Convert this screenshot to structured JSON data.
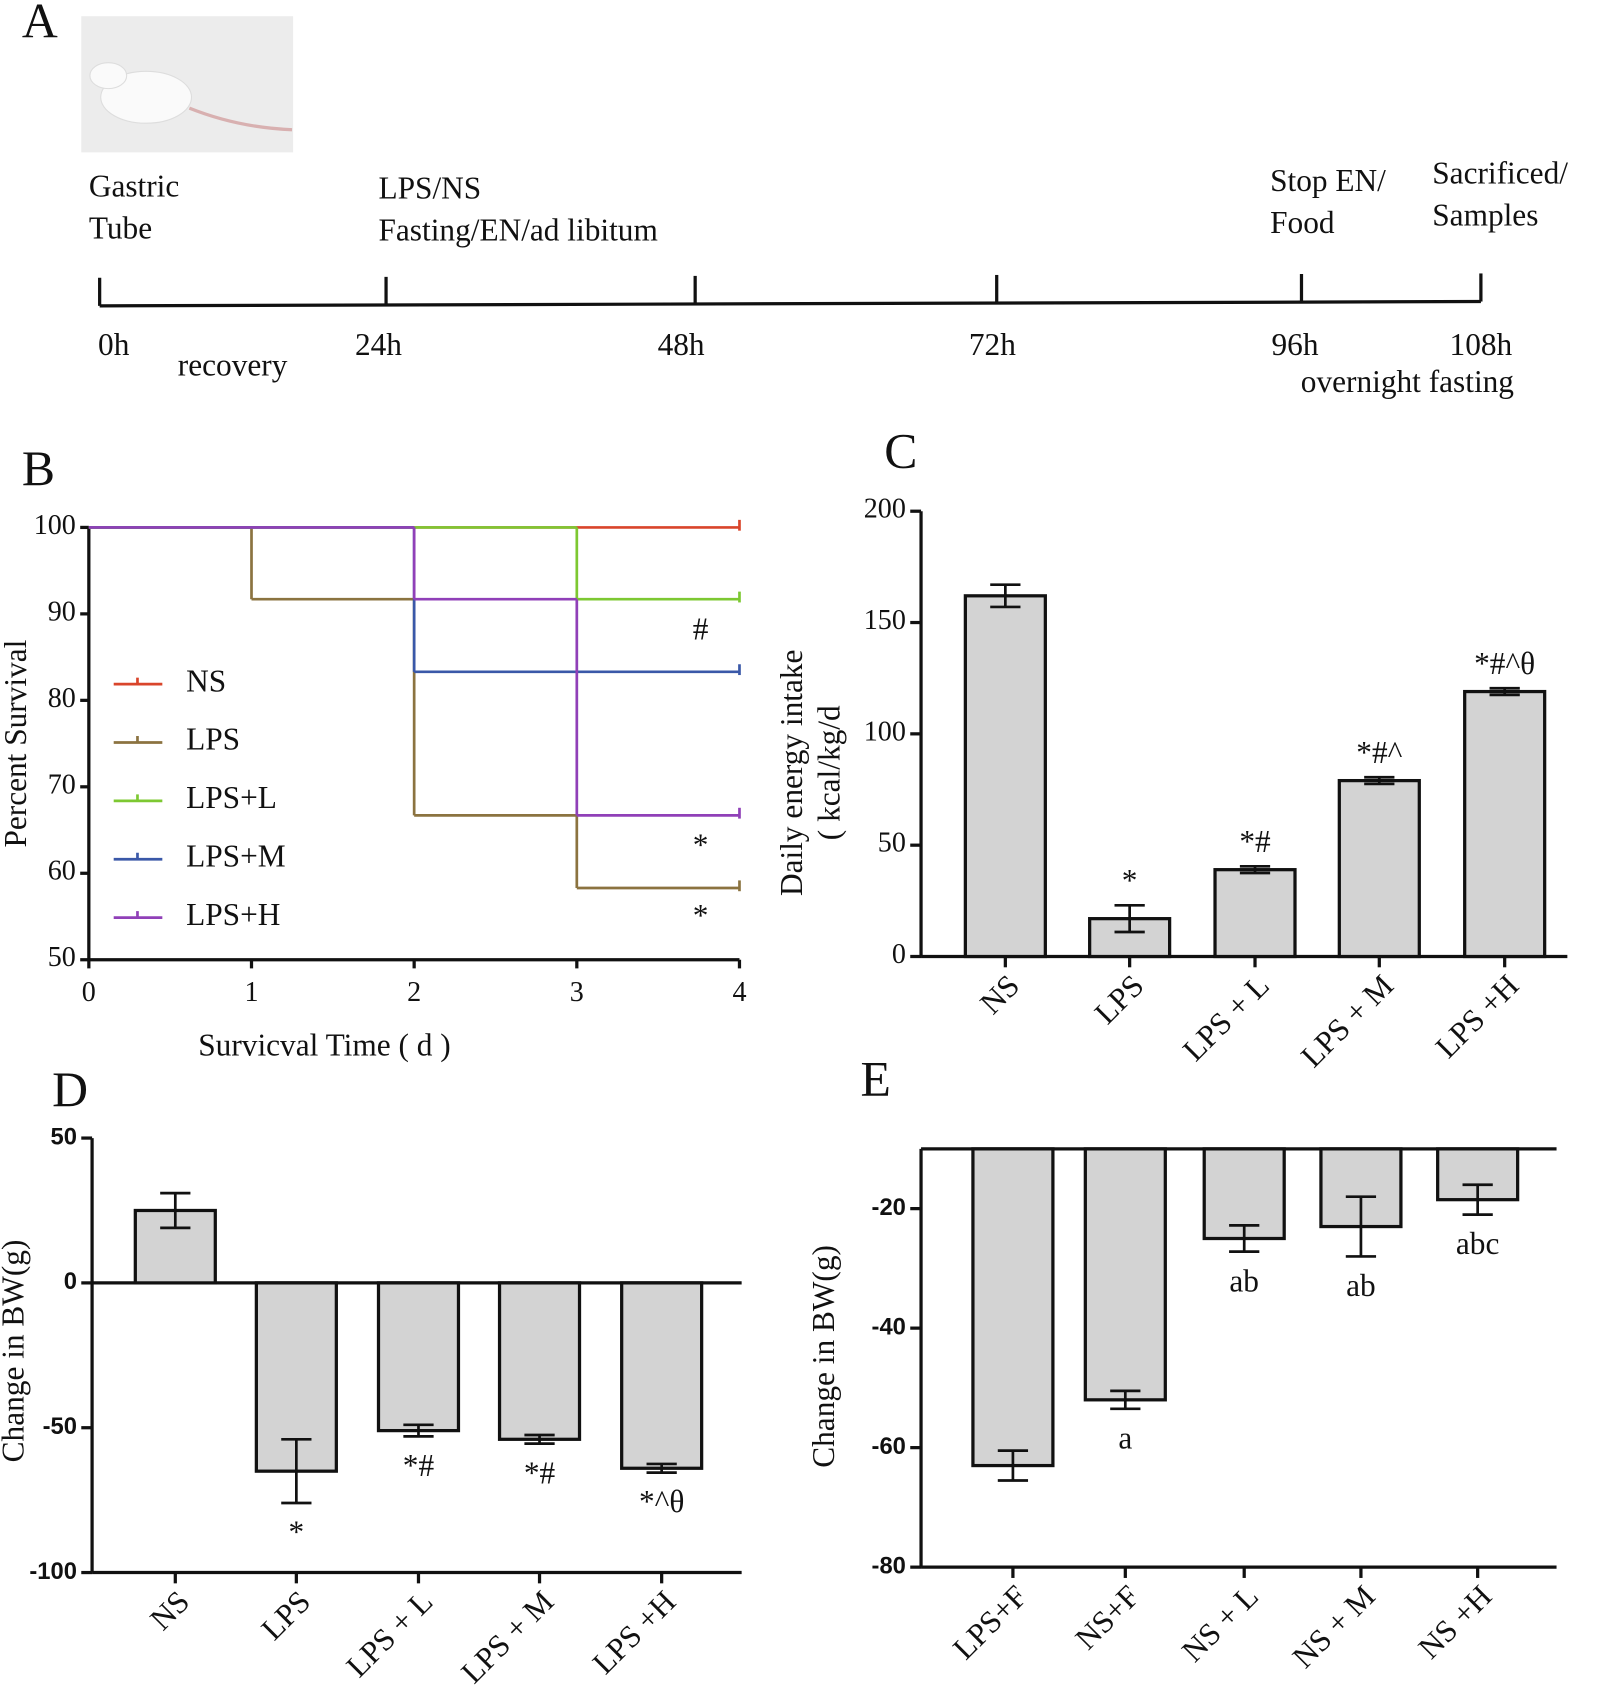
{
  "timeline": {
    "panel_label": "A",
    "events": [
      [
        "Gastric",
        "Tube"
      ],
      [
        "LPS/NS",
        "Fasting/EN/ad libitum"
      ],
      [
        "Stop EN/",
        "Food"
      ],
      [
        "Sacrificed/",
        "Samples"
      ]
    ],
    "ticks": [
      "0h",
      "24h",
      "48h",
      "72h",
      "96h",
      "108h"
    ],
    "phases": [
      "recovery",
      "overnight fasting"
    ]
  },
  "chart_data": [
    {
      "type": "survival",
      "panel_label": "B",
      "x_label": "Survicval Time ( d )",
      "y_label": "Percent Survival",
      "xlim": [
        0,
        4
      ],
      "xticks": [
        0,
        1,
        2,
        3,
        4
      ],
      "ylim": [
        50,
        100
      ],
      "yticks": [
        50,
        60,
        70,
        80,
        90,
        100
      ],
      "series": [
        {
          "name": "NS",
          "color": "#d9452b",
          "x": [
            0,
            4
          ],
          "values": [
            100,
            100
          ]
        },
        {
          "name": "LPS",
          "color": "#8b7340",
          "x": [
            0,
            1,
            2,
            3,
            4
          ],
          "values": [
            100,
            91.7,
            66.7,
            58.3,
            58.3
          ]
        },
        {
          "name": "LPS+L",
          "color": "#7dc832",
          "x": [
            0,
            3,
            4
          ],
          "values": [
            100,
            91.7,
            91.7
          ]
        },
        {
          "name": "LPS+M",
          "color": "#3a58a8",
          "x": [
            0,
            2,
            4
          ],
          "values": [
            100,
            83.3,
            83.3
          ]
        },
        {
          "name": "LPS+H",
          "color": "#9040b8",
          "x": [
            0,
            2,
            3,
            4
          ],
          "values": [
            100,
            91.7,
            66.7,
            66.7
          ]
        }
      ],
      "annotations": [
        "#",
        "*",
        "*"
      ]
    },
    {
      "type": "bar",
      "panel_label": "C",
      "y_label": [
        "Daily energy intake",
        "( kcal/kg/d"
      ],
      "categories": [
        "NS",
        "LPS",
        "LPS + L",
        "LPS + M",
        "LPS +H"
      ],
      "values": [
        162,
        17,
        39,
        79,
        119
      ],
      "errors": [
        5,
        6,
        1.5,
        1.5,
        1.5
      ],
      "annotations": [
        null,
        "*",
        "*#",
        "*#^",
        "*#^θ"
      ],
      "color": "#d3d3d3",
      "ylim": [
        0,
        200
      ],
      "yticks": [
        0,
        50,
        100,
        150,
        200
      ]
    },
    {
      "type": "bar",
      "panel_label": "D",
      "y_label": [
        "Change in BW(g)"
      ],
      "categories": [
        "NS",
        "LPS",
        "LPS + L",
        "LPS + M",
        "LPS +H"
      ],
      "values": [
        25,
        -65,
        -51,
        -54,
        -64
      ],
      "errors": [
        6,
        11,
        2,
        1.5,
        1.5
      ],
      "annotations": [
        null,
        "*",
        "*#",
        "*#",
        "*^θ"
      ],
      "color": "#d3d3d3",
      "ylim": [
        -100,
        50
      ],
      "yticks": [
        -100,
        -50,
        0,
        50
      ]
    },
    {
      "type": "bar",
      "panel_label": "E",
      "y_label": [
        "Change in BW(g)"
      ],
      "categories": [
        "LPS+F",
        "NS+F",
        "NS + L",
        "NS + M",
        "NS +H"
      ],
      "values": [
        -63,
        -52,
        -25,
        -23,
        -18.5
      ],
      "errors": [
        2.5,
        1.5,
        2.2,
        5,
        2.5
      ],
      "annotations": [
        null,
        "a",
        "ab",
        "ab",
        "abc"
      ],
      "color": "#d3d3d3",
      "ylim": [
        -80,
        -10
      ],
      "yticks": [
        -80,
        -60,
        -40,
        -20
      ]
    }
  ]
}
